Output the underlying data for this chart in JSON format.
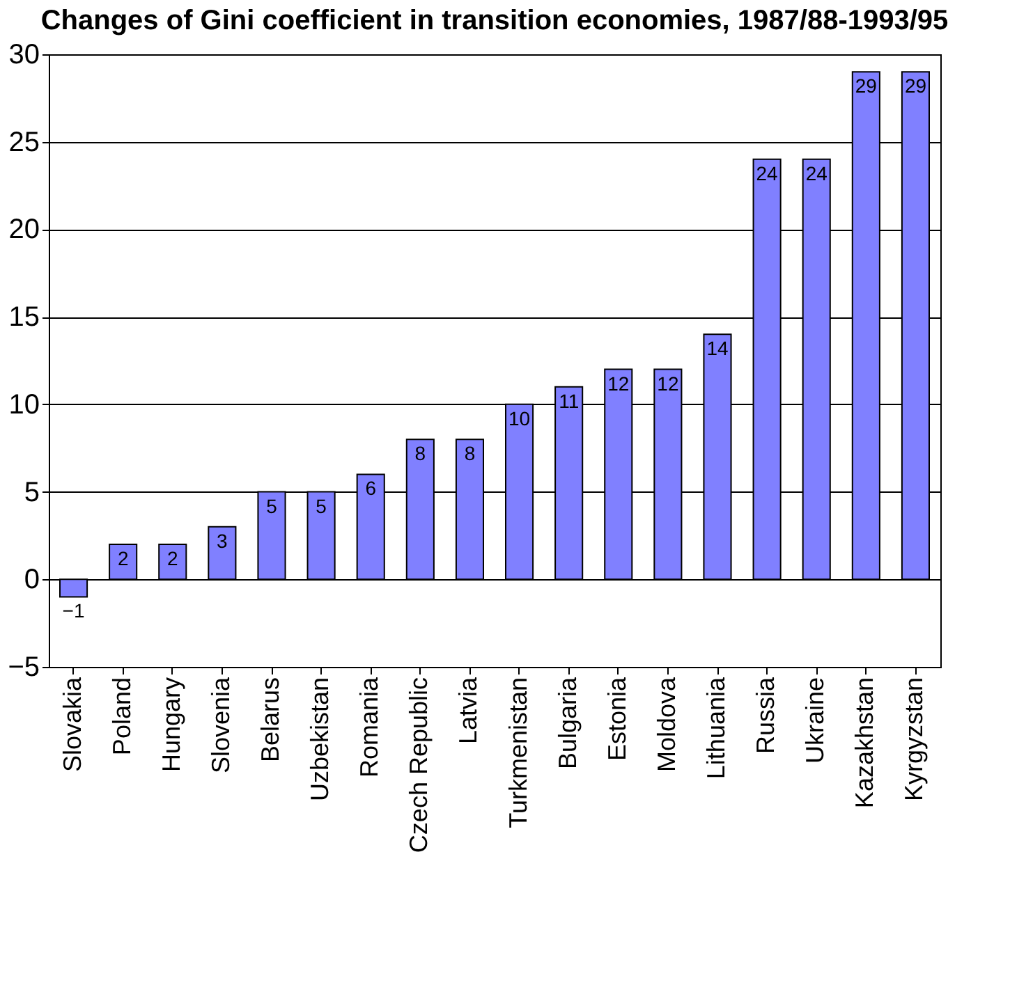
{
  "chart_data": {
    "type": "bar",
    "title": "Changes of Gini coefficient in transition economies, 1987/88-1993/95",
    "categories": [
      "Slovakia",
      "Poland",
      "Hungary",
      "Slovenia",
      "Belarus",
      "Uzbekistan",
      "Romania",
      "Czech Republic",
      "Latvia",
      "Turkmenistan",
      "Bulgaria",
      "Estonia",
      "Moldova",
      "Lithuania",
      "Russia",
      "Ukraine",
      "Kazakhstan",
      "Kyrgyzstan"
    ],
    "values": [
      -1,
      2,
      2,
      3,
      5,
      5,
      6,
      8,
      8,
      10,
      11,
      12,
      12,
      14,
      24,
      24,
      29,
      29
    ],
    "color": "#8080ff",
    "ylim": [
      -5,
      30
    ],
    "yticks": [
      -5,
      0,
      5,
      10,
      15,
      20,
      25,
      30
    ],
    "grid": "y",
    "data_labels": true
  }
}
